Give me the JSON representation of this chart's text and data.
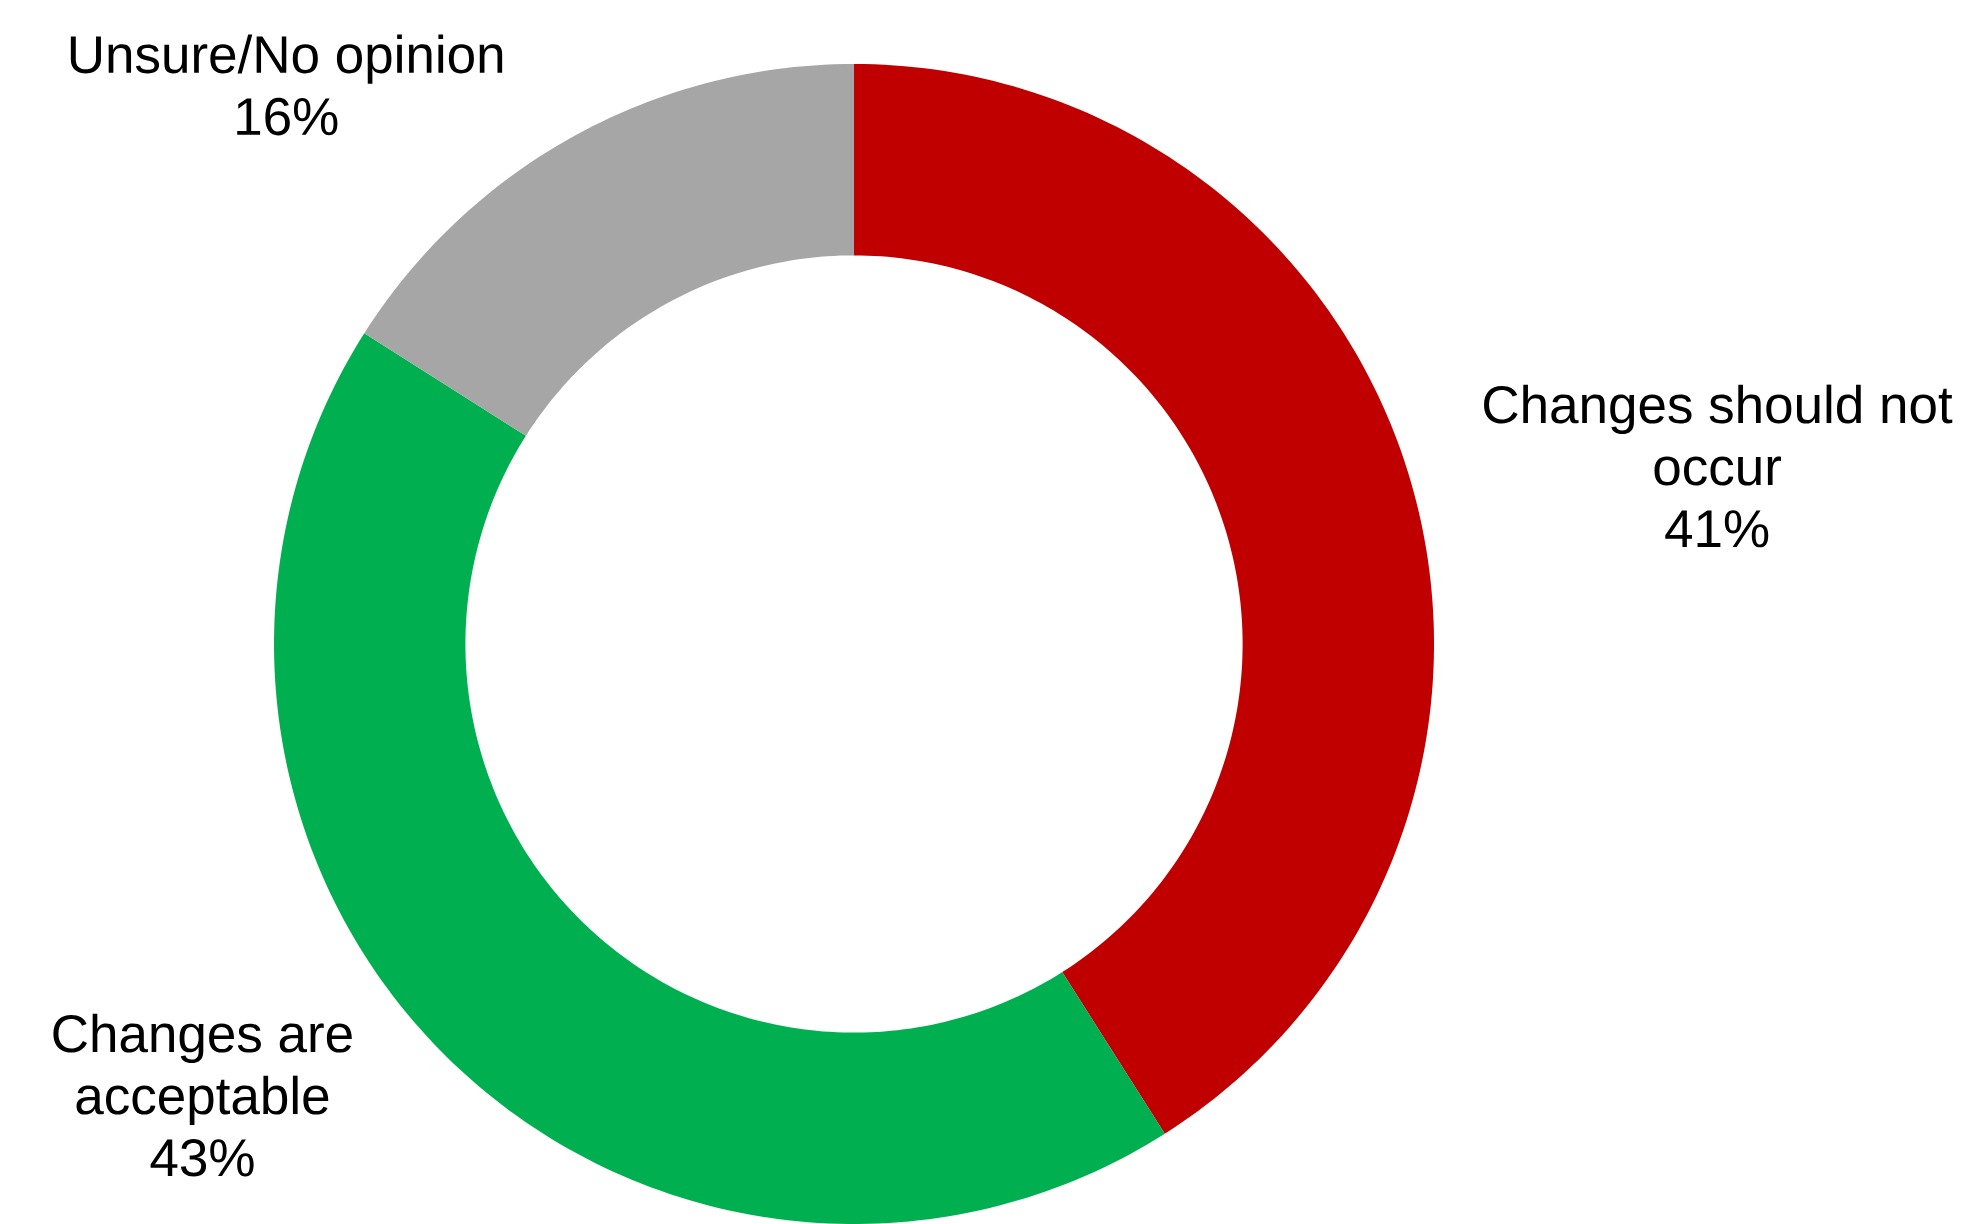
{
  "chart_data": {
    "type": "donut",
    "categories": [
      "Changes should not occur",
      "Changes are acceptable",
      "Unsure/No opinion"
    ],
    "values": [
      41,
      43,
      16
    ],
    "colors": [
      "#c00000",
      "#00b050",
      "#a6a6a6"
    ],
    "value_labels": [
      "41%",
      "43%",
      "16%"
    ]
  }
}
